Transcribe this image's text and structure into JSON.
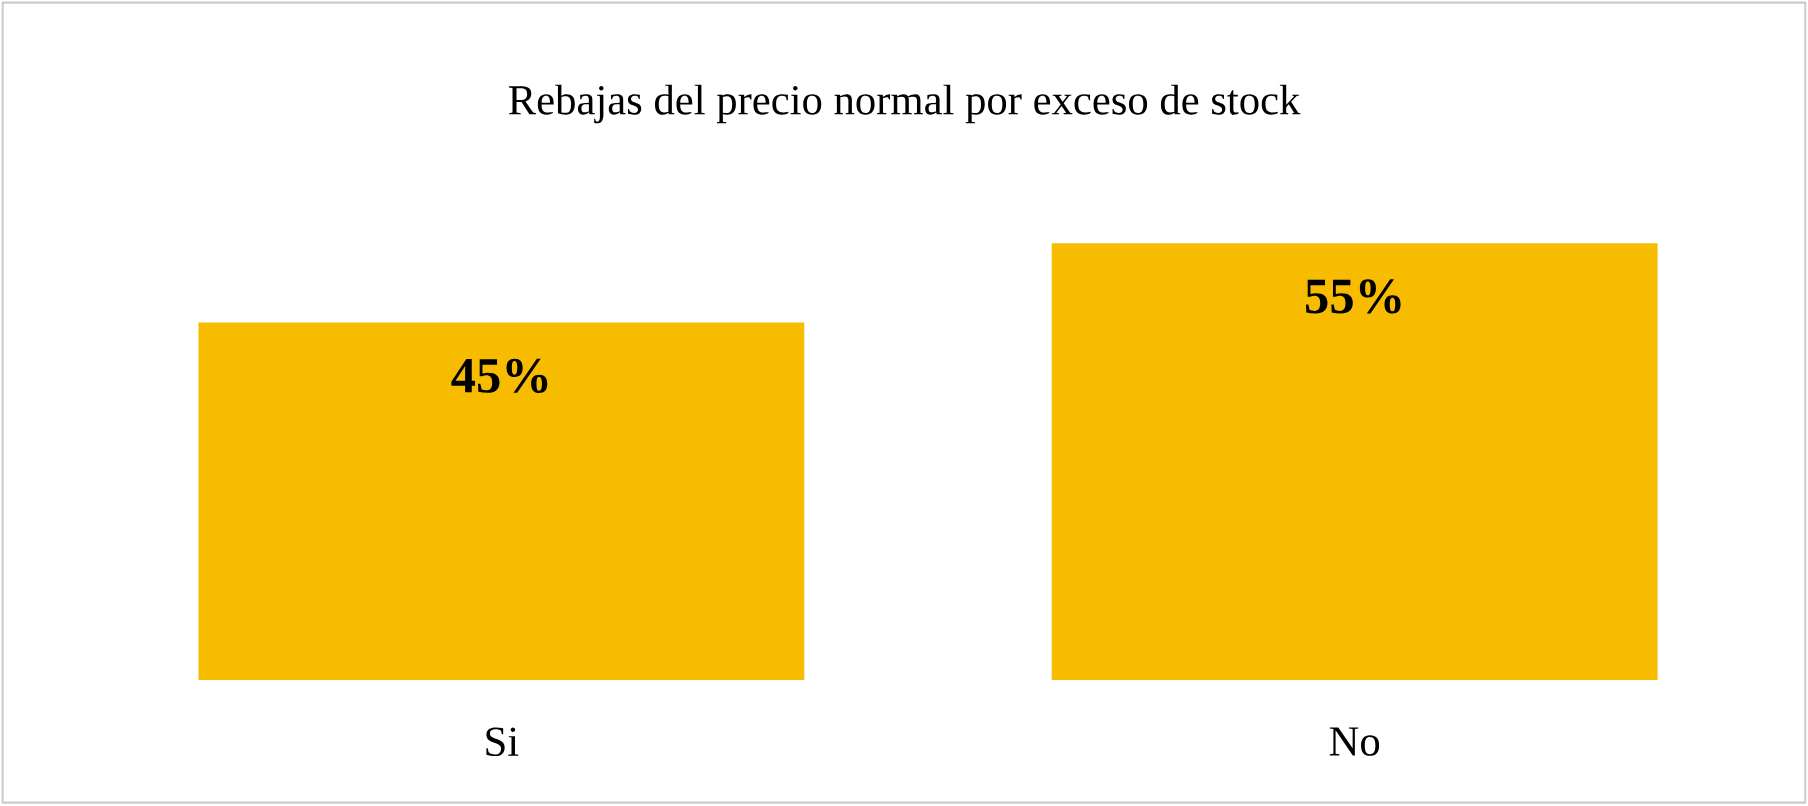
{
  "chart_data": {
    "type": "bar",
    "title": "Rebajas del precio normal por exceso de stock",
    "categories": [
      "Si",
      "No"
    ],
    "values": [
      45,
      55
    ],
    "value_labels": [
      "45%",
      "55%"
    ],
    "color": "#f7bb00"
  }
}
